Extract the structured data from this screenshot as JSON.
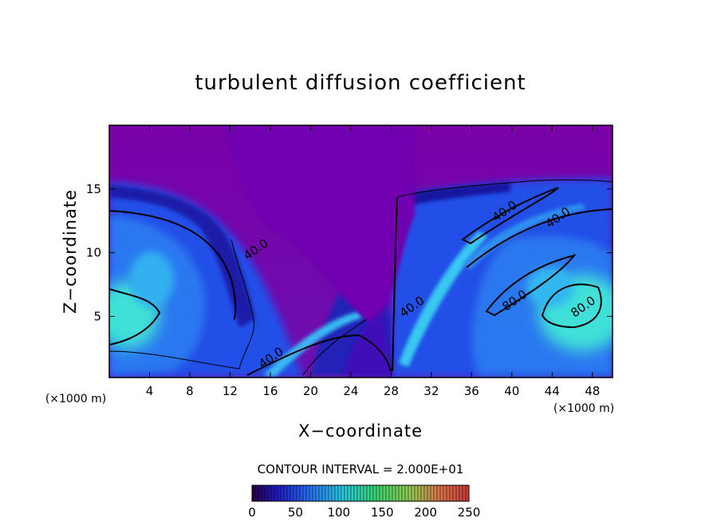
{
  "chart_data": {
    "type": "heatmap",
    "title": "turbulent diffusion coefficient",
    "xlabel": "X−coordinate",
    "ylabel": "Z−coordinate",
    "x_unit": "(×1000 m)",
    "z_unit": "(×1000 m)",
    "xlim": [
      0,
      50
    ],
    "ylim": [
      0.2,
      20
    ],
    "x_ticks": [
      4,
      8,
      12,
      16,
      20,
      24,
      28,
      32,
      36,
      40,
      44,
      48
    ],
    "y_ticks": [
      5,
      10,
      15
    ],
    "contour_interval_text": "CONTOUR INTERVAL = 2.000E+01",
    "contour_interval": 20,
    "contour_labels": [
      {
        "text": "40.0",
        "x": 14.8,
        "z": 10.0
      },
      {
        "text": "40.0",
        "x": 39.5,
        "z": 13.0
      },
      {
        "text": "40.0",
        "x": 44.8,
        "z": 12.5
      },
      {
        "text": "40.0",
        "x": 30.3,
        "z": 5.5
      },
      {
        "text": "40.0",
        "x": 16.3,
        "z": 1.5
      },
      {
        "text": "80.0",
        "x": 40.5,
        "z": 6.0
      },
      {
        "text": "80.0",
        "x": 47.3,
        "z": 5.5
      }
    ],
    "colorbar": {
      "range": [
        0,
        250
      ],
      "tick_labels": [
        "0",
        "50",
        "100",
        "150",
        "200",
        "250"
      ],
      "ticks": [
        0,
        50,
        100,
        150,
        200,
        250
      ]
    },
    "colors": {
      "background_min": "#7a00a8",
      "low": "#1a1aa8",
      "mid_blue": "#2a60f0",
      "high": "#40e0e0"
    }
  }
}
